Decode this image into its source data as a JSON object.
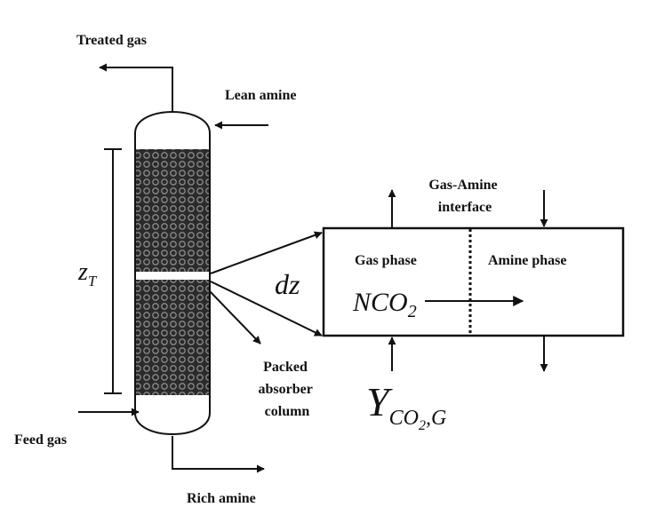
{
  "labels": {
    "treated_gas": "Treated gas",
    "lean_amine": "Lean amine",
    "feed_gas": "Feed gas",
    "rich_amine": "Rich amine",
    "packed_line1": "Packed",
    "packed_line2": "absorber",
    "packed_line3": "column",
    "gas_amine_line1": "Gas-Amine",
    "gas_amine_line2": "interface",
    "gas_phase": "Gas phase",
    "amine_phase": "Amine phase"
  },
  "math": {
    "z_main": "z",
    "z_sub": "T",
    "dz": "dz",
    "nco_main": "NCO",
    "nco_sub": "2",
    "y_main": "Y",
    "y_sub_main": "CO",
    "y_sub_sub": "2",
    "y_sub_tail": ",G"
  },
  "colors": {
    "ink": "#111111",
    "packing_fill": "#2b2b2b",
    "packing_ring": "#8a8a8a",
    "background": "#ffffff"
  }
}
